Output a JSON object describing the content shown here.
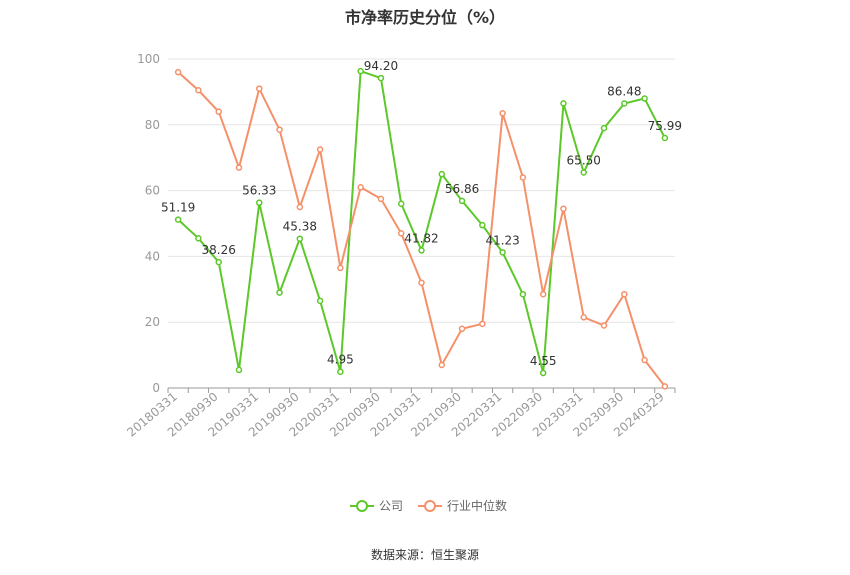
{
  "title": "市净率历史分位（%）",
  "source": "数据来源：恒生聚源",
  "chart_data": {
    "type": "line",
    "title": "市净率历史分位（%）",
    "ylim": [
      0,
      100
    ],
    "yticks": [
      0,
      20,
      40,
      60,
      80,
      100
    ],
    "grid": true,
    "legend_position": "bottom",
    "x": [
      "20180331",
      "20180630",
      "20180930",
      "20181231",
      "20190331",
      "20190630",
      "20190930",
      "20191231",
      "20200331",
      "20200630",
      "20200930",
      "20201231",
      "20210331",
      "20210630",
      "20210930",
      "20211231",
      "20220331",
      "20220630",
      "20220930",
      "20221231",
      "20230331",
      "20230630",
      "20230930",
      "20231231",
      "20240329"
    ],
    "xtick_labels": [
      "20180331",
      "20180930",
      "20190331",
      "20190930",
      "20200331",
      "20200930",
      "20210331",
      "20210930",
      "20220331",
      "20220930",
      "20230331",
      "20230930",
      "20240329"
    ],
    "series": [
      {
        "name": "公司",
        "color": "#5cc82a",
        "values": [
          51.19,
          45.5,
          38.26,
          5.5,
          56.33,
          29.0,
          45.38,
          26.5,
          4.95,
          96.3,
          94.2,
          56.0,
          41.82,
          65.0,
          56.86,
          49.5,
          41.23,
          28.5,
          4.55,
          86.5,
          65.5,
          79.0,
          86.48,
          88.0,
          75.99
        ],
        "data_labels": {
          "0": "51.19",
          "2": "38.26",
          "4": "56.33",
          "6": "45.38",
          "8": "4.95",
          "10": "94.20",
          "12": "41.82",
          "14": "56.86",
          "16": "41.23",
          "18": "4.55",
          "20": "65.50",
          "22": "86.48",
          "24": "75.99"
        }
      },
      {
        "name": "行业中位数",
        "color": "#f5916a",
        "values": [
          96.0,
          90.5,
          84.0,
          67.0,
          91.0,
          78.5,
          55.0,
          72.5,
          36.5,
          61.0,
          57.5,
          47.0,
          32.0,
          7.0,
          18.0,
          19.5,
          83.5,
          64.0,
          28.5,
          54.5,
          21.5,
          19.0,
          28.5,
          8.5,
          0.5
        ]
      }
    ]
  }
}
